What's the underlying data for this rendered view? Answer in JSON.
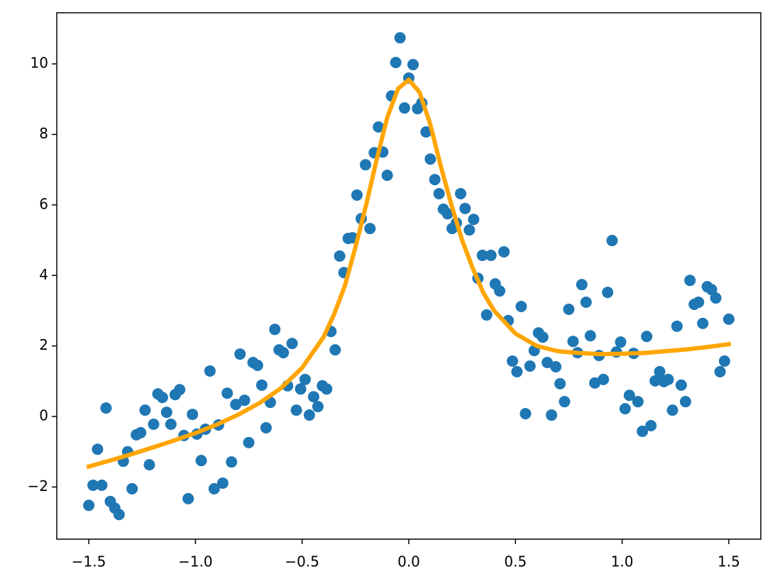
{
  "chart_data": {
    "type": "scatter",
    "xlim": [
      -1.65,
      1.65
    ],
    "ylim": [
      -3.48,
      11.45
    ],
    "xticks": [
      {
        "value": -1.5,
        "label": "−1.5"
      },
      {
        "value": -1.0,
        "label": "−1.0"
      },
      {
        "value": -0.5,
        "label": "−0.5"
      },
      {
        "value": 0.0,
        "label": "0.0"
      },
      0.5,
      {
        "value": 1.0,
        "label": "1.0"
      },
      1.5
    ],
    "yticks": [
      {
        "value": -2,
        "label": "−2"
      },
      0,
      2,
      4,
      6,
      8,
      10
    ],
    "series": [
      {
        "type": "scatter",
        "color": "#1f77b4",
        "x": [
          -1.5,
          -1.48,
          -1.459,
          -1.439,
          -1.419,
          -1.399,
          -1.378,
          -1.358,
          -1.338,
          -1.318,
          -1.297,
          -1.277,
          -1.257,
          -1.236,
          -1.216,
          -1.196,
          -1.176,
          -1.155,
          -1.135,
          -1.115,
          -1.095,
          -1.074,
          -1.054,
          -1.034,
          -1.014,
          -0.993,
          -0.973,
          -0.953,
          -0.932,
          -0.912,
          -0.892,
          -0.872,
          -0.851,
          -0.831,
          -0.811,
          -0.791,
          -0.77,
          -0.75,
          -0.73,
          -0.709,
          -0.689,
          -0.669,
          -0.649,
          -0.628,
          -0.608,
          -0.588,
          -0.568,
          -0.547,
          -0.527,
          -0.507,
          -0.486,
          -0.466,
          -0.446,
          -0.426,
          -0.405,
          -0.385,
          -0.365,
          -0.345,
          -0.324,
          -0.304,
          -0.284,
          -0.264,
          -0.243,
          -0.223,
          -0.203,
          -0.182,
          -0.162,
          -0.142,
          -0.122,
          -0.101,
          -0.081,
          -0.061,
          -0.041,
          -0.02,
          0.0,
          0.02,
          0.041,
          0.061,
          0.081,
          0.101,
          0.122,
          0.142,
          0.162,
          0.182,
          0.203,
          0.223,
          0.243,
          0.264,
          0.284,
          0.304,
          0.324,
          0.345,
          0.365,
          0.385,
          0.405,
          0.426,
          0.446,
          0.466,
          0.486,
          0.507,
          0.527,
          0.547,
          0.568,
          0.588,
          0.608,
          0.628,
          0.649,
          0.669,
          0.689,
          0.709,
          0.73,
          0.75,
          0.77,
          0.791,
          0.811,
          0.831,
          0.851,
          0.872,
          0.892,
          0.912,
          0.932,
          0.953,
          0.973,
          0.993,
          1.014,
          1.034,
          1.054,
          1.074,
          1.095,
          1.115,
          1.135,
          1.155,
          1.176,
          1.196,
          1.216,
          1.236,
          1.257,
          1.277,
          1.297,
          1.318,
          1.338,
          1.358,
          1.378,
          1.399,
          1.419,
          1.439,
          1.459,
          1.48,
          1.5
        ],
        "values": [
          -2.52,
          -1.95,
          -0.93,
          -1.95,
          0.24,
          -2.41,
          -2.6,
          -2.78,
          -1.27,
          -1.0,
          -2.05,
          -0.52,
          -0.46,
          0.18,
          -1.37,
          -0.22,
          0.64,
          0.54,
          0.12,
          -0.22,
          0.62,
          0.76,
          -0.54,
          -2.33,
          0.06,
          -0.5,
          -1.25,
          -0.36,
          1.29,
          -2.05,
          -0.24,
          -1.89,
          0.66,
          -1.29,
          0.34,
          1.77,
          0.46,
          -0.74,
          1.53,
          1.45,
          0.89,
          -0.32,
          0.4,
          2.47,
          1.89,
          1.81,
          0.87,
          2.07,
          0.18,
          0.78,
          1.05,
          0.04,
          0.56,
          0.28,
          0.87,
          0.78,
          2.41,
          1.89,
          4.55,
          4.08,
          5.05,
          5.07,
          6.28,
          5.61,
          7.14,
          5.33,
          7.48,
          8.21,
          7.5,
          6.84,
          9.09,
          10.04,
          10.74,
          8.75,
          9.6,
          9.98,
          8.73,
          8.89,
          8.07,
          7.3,
          6.72,
          6.32,
          5.88,
          5.75,
          5.33,
          5.49,
          6.32,
          5.9,
          5.29,
          5.59,
          3.92,
          4.57,
          2.88,
          4.57,
          3.76,
          3.56,
          4.67,
          2.72,
          1.57,
          1.27,
          3.12,
          0.08,
          1.43,
          1.87,
          2.37,
          2.25,
          1.53,
          0.04,
          1.41,
          0.93,
          0.42,
          3.04,
          2.13,
          1.81,
          3.74,
          3.24,
          2.29,
          0.95,
          1.73,
          1.05,
          3.52,
          4.99,
          1.83,
          2.11,
          0.22,
          0.6,
          1.79,
          0.42,
          -0.42,
          2.27,
          -0.26,
          1.01,
          1.27,
          0.99,
          1.05,
          0.18,
          2.56,
          0.89,
          0.42,
          3.86,
          3.18,
          3.24,
          2.64,
          3.68,
          3.6,
          3.36,
          1.27,
          1.57,
          2.76
        ]
      },
      {
        "type": "line",
        "color": "#ffa500",
        "x": [
          -1.5,
          -1.4,
          -1.3,
          -1.2,
          -1.1,
          -1.0,
          -0.9,
          -0.8,
          -0.7,
          -0.6,
          -0.5,
          -0.4,
          -0.35,
          -0.3,
          -0.25,
          -0.2,
          -0.15,
          -0.1,
          -0.05,
          0.0,
          0.05,
          0.1,
          0.15,
          0.2,
          0.25,
          0.3,
          0.35,
          0.4,
          0.5,
          0.6,
          0.7,
          0.8,
          0.9,
          1.0,
          1.1,
          1.2,
          1.3,
          1.4,
          1.5
        ],
        "values": [
          -1.42,
          -1.25,
          -1.07,
          -0.88,
          -0.68,
          -0.47,
          -0.23,
          0.05,
          0.38,
          0.8,
          1.38,
          2.25,
          2.9,
          3.7,
          4.8,
          6.0,
          7.3,
          8.5,
          9.3,
          9.55,
          9.2,
          8.3,
          7.1,
          6.0,
          5.0,
          4.2,
          3.5,
          3.0,
          2.35,
          2.0,
          1.85,
          1.8,
          1.77,
          1.78,
          1.8,
          1.85,
          1.9,
          1.97,
          2.05
        ]
      }
    ]
  }
}
